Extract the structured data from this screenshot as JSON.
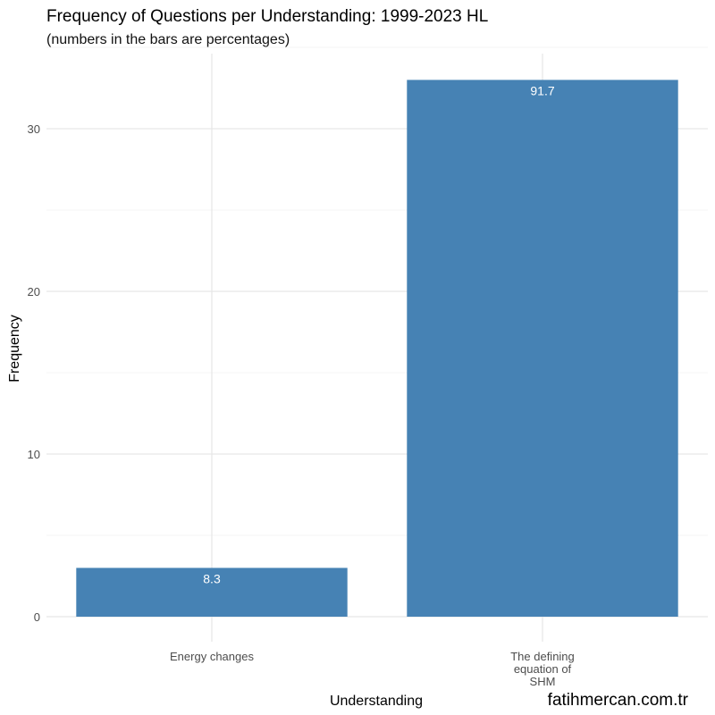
{
  "chart_data": {
    "type": "bar",
    "title": "Frequency of Questions per Understanding: 1999-2023 HL",
    "subtitle": "(numbers in the bars are percentages)",
    "xlabel": "Understanding",
    "ylabel": "Frequency",
    "categories": [
      [
        "Energy changes"
      ],
      [
        "The defining",
        "equation of",
        "SHM"
      ]
    ],
    "values": [
      3,
      33
    ],
    "bar_labels": [
      "8.3",
      "91.7"
    ],
    "ylim": [
      0,
      33
    ],
    "yticks": [
      0,
      10,
      20,
      30
    ],
    "grid": true,
    "bar_color": "#4682b4"
  },
  "credit": "fatihmercan.com.tr"
}
